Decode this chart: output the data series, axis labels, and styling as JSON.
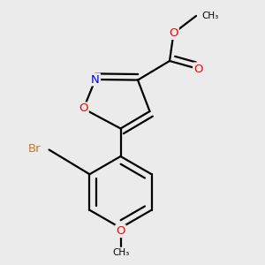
{
  "background_color": "#ebebeb",
  "bond_color": "#000000",
  "bond_width": 1.6,
  "atom_colors": {
    "O": "#ff0000",
    "N": "#0000ff",
    "Br": "#cc7722",
    "C": "#000000"
  },
  "font_size_atom": 8.5,
  "font_size_small": 7.5
}
